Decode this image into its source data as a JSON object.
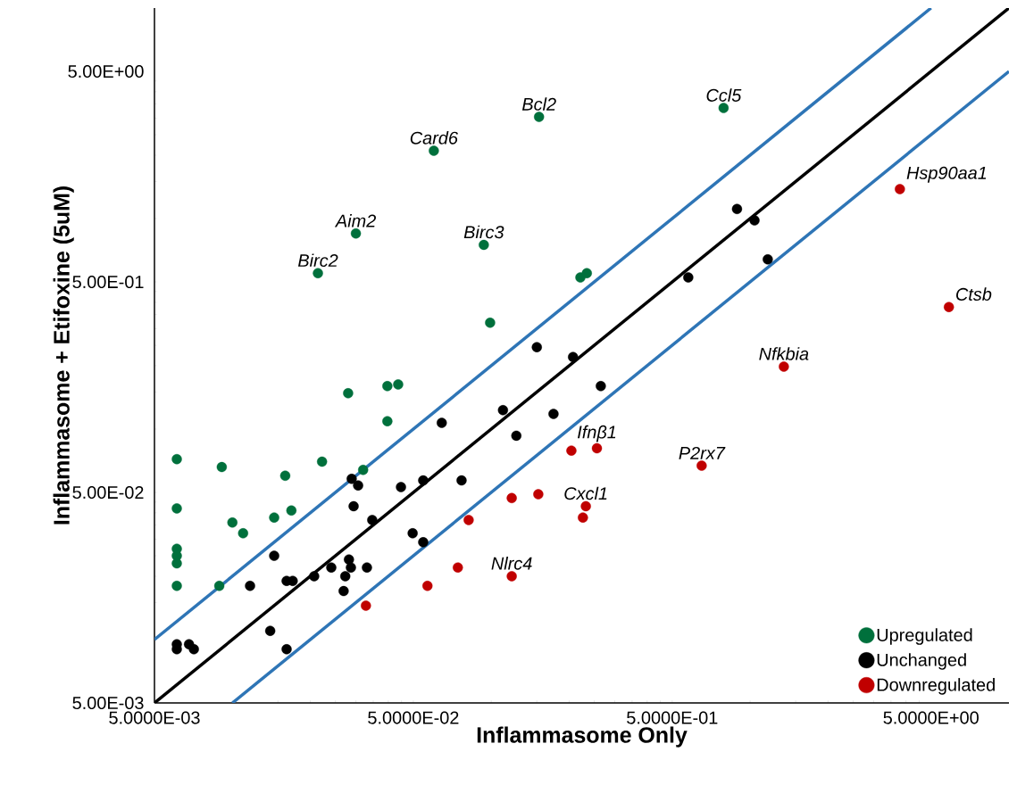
{
  "chart_data": {
    "type": "scatter",
    "xlabel": "Inflammasome Only",
    "ylabel": "Inflammasome + Etifoxine (5uM)",
    "log": "xy",
    "grid": false,
    "legend": "bottom right",
    "xlim": [
      0.005,
      10
    ],
    "ylim": [
      0.005,
      10
    ],
    "xticks": [
      {
        "value": 0.005,
        "label": "5.0000E-03"
      },
      {
        "value": 0.05,
        "label": "5.0000E-02"
      },
      {
        "value": 0.5,
        "label": "5.0000E-01"
      },
      {
        "value": 5,
        "label": "5.0000E+00"
      }
    ],
    "yticks": [
      {
        "value": 0.005,
        "label": "5.00E-03"
      },
      {
        "value": 0.05,
        "label": "5.00E-02"
      },
      {
        "value": 0.5,
        "label": "5.00E-01"
      },
      {
        "value": 5,
        "label": "5.00E+00"
      }
    ],
    "series": [
      {
        "name": "Upregulated",
        "color": "#00703c",
        "marker": "circle",
        "x": [
          0.0061,
          0.0091,
          0.0061,
          0.01,
          0.011,
          0.0061,
          0.0061,
          0.0061,
          0.0061,
          0.0089,
          0.0145,
          0.0169,
          0.016,
          0.0222,
          0.032,
          0.028,
          0.0397,
          0.0437,
          0.0397,
          0.099,
          0.153,
          0.06,
          0.03,
          0.0936,
          0.0214,
          0.221,
          0.234,
          0.79
        ],
        "values": [
          0.072,
          0.066,
          0.042,
          0.036,
          0.032,
          0.027,
          0.025,
          0.023,
          0.018,
          0.018,
          0.038,
          0.041,
          0.06,
          0.07,
          0.064,
          0.148,
          0.16,
          0.163,
          0.109,
          0.32,
          3.04,
          2.1,
          0.85,
          0.75,
          0.55,
          0.525,
          0.55,
          3.35
        ]
      },
      {
        "name": "Unchanged",
        "color": "#000000",
        "marker": "circle",
        "x": [
          0.0061,
          0.0061,
          0.0068,
          0.0071,
          0.0117,
          0.014,
          0.0162,
          0.0145,
          0.0162,
          0.0171,
          0.0207,
          0.0241,
          0.0273,
          0.0269,
          0.0282,
          0.0287,
          0.0331,
          0.0294,
          0.0347,
          0.0289,
          0.0306,
          0.0448,
          0.0546,
          0.0497,
          0.0546,
          0.0644,
          0.15,
          0.207,
          0.265,
          0.111,
          0.174,
          0.125,
          0.0768,
          0.89,
          1.04,
          1.17,
          0.577
        ],
        "values": [
          0.0095,
          0.009,
          0.0095,
          0.009,
          0.018,
          0.011,
          0.009,
          0.025,
          0.019,
          0.019,
          0.02,
          0.022,
          0.02,
          0.017,
          0.024,
          0.022,
          0.022,
          0.043,
          0.037,
          0.058,
          0.054,
          0.053,
          0.057,
          0.032,
          0.029,
          0.107,
          0.245,
          0.22,
          0.16,
          0.123,
          0.118,
          0.093,
          0.057,
          1.11,
          0.98,
          0.64,
          0.525
        ]
      },
      {
        "name": "Downregulated",
        "color": "#c00000",
        "marker": "circle",
        "x": [
          0.0328,
          0.0567,
          0.0818,
          0.0743,
          0.12,
          0.152,
          0.204,
          0.256,
          0.232,
          0.226,
          0.12,
          3.79,
          5.86,
          1.35,
          0.65
        ],
        "values": [
          0.0145,
          0.018,
          0.037,
          0.022,
          0.047,
          0.049,
          0.079,
          0.081,
          0.043,
          0.038,
          0.02,
          1.38,
          0.38,
          0.198,
          0.067
        ]
      },
      {
        "type": "line",
        "color": "#000000",
        "marker": "none",
        "x": [
          0.005,
          10
        ],
        "values": [
          0.005,
          10
        ]
      },
      {
        "type": "line",
        "color": "#2e75b6",
        "marker": "none",
        "x": [
          0.005,
          5
        ],
        "values": [
          0.01,
          10
        ]
      },
      {
        "type": "line",
        "color": "#2e75b6",
        "marker": "none",
        "x": [
          0.01,
          10
        ],
        "values": [
          0.005,
          5
        ]
      }
    ],
    "annotations": [
      {
        "text": "Ccl5",
        "x": 0.79,
        "y": 3.35
      },
      {
        "text": "Bcl2",
        "x": 0.153,
        "y": 3.04
      },
      {
        "text": "Card6",
        "x": 0.06,
        "y": 2.1
      },
      {
        "text": "Aim2",
        "x": 0.03,
        "y": 0.85
      },
      {
        "text": "Birc3",
        "x": 0.0936,
        "y": 0.75
      },
      {
        "text": "Birc2",
        "x": 0.0214,
        "y": 0.55
      },
      {
        "text": "Hsp90aa1",
        "x": 3.79,
        "y": 1.38
      },
      {
        "text": "Ctsb",
        "x": 5.86,
        "y": 0.38
      },
      {
        "text": "Nfkbia",
        "x": 1.35,
        "y": 0.198
      },
      {
        "text": "Ifnβ1",
        "x": 0.256,
        "y": 0.081
      },
      {
        "text": "P2rx7",
        "x": 0.65,
        "y": 0.067
      },
      {
        "text": "Cxcl1",
        "x": 0.232,
        "y": 0.043
      },
      {
        "text": "Nlrc4",
        "x": 0.12,
        "y": 0.02
      }
    ]
  }
}
